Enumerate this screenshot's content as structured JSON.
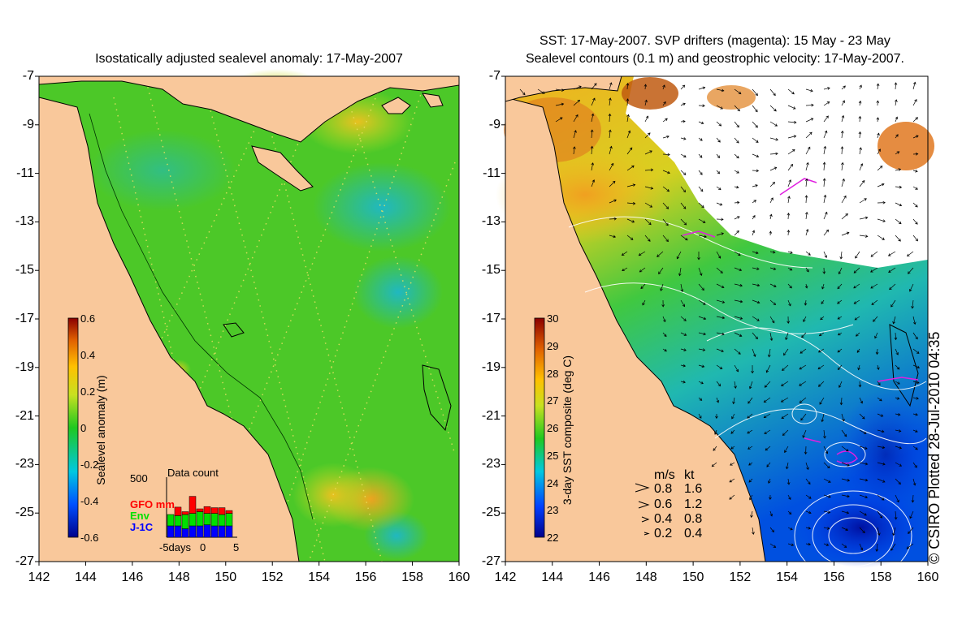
{
  "left_panel": {
    "title": "Isostatically adjusted sealevel anomaly: 17-May-2007",
    "colorbar": {
      "label": "Sealevel anomaly (m)",
      "ticks": [
        "0.6",
        "0.4",
        "0.2",
        "0",
        "-0.2",
        "-0.4",
        "-0.6"
      ],
      "range": [
        -0.6,
        0.6
      ]
    },
    "data_count": {
      "title": "Data count",
      "ymax": "500",
      "legend": [
        {
          "name": "GFO mm",
          "color": "#ff0000"
        },
        {
          "name": "Env",
          "color": "#00e000"
        },
        {
          "name": "J-1C",
          "color": "#0000ff"
        }
      ],
      "x_ticks": [
        "-5days",
        "0",
        "5"
      ],
      "bars": [
        {
          "j1": 0.2,
          "env": 0.2,
          "gfo": 0.0
        },
        {
          "j1": 0.2,
          "env": 0.18,
          "gfo": 0.15
        },
        {
          "j1": 0.15,
          "env": 0.25,
          "gfo": 0.05
        },
        {
          "j1": 0.2,
          "env": 0.22,
          "gfo": 0.3
        },
        {
          "j1": 0.2,
          "env": 0.25,
          "gfo": 0.05
        },
        {
          "j1": 0.22,
          "env": 0.2,
          "gfo": 0.12
        },
        {
          "j1": 0.2,
          "env": 0.22,
          "gfo": 0.1
        },
        {
          "j1": 0.2,
          "env": 0.2,
          "gfo": 0.12
        },
        {
          "j1": 0.2,
          "env": 0.22,
          "gfo": 0.05
        }
      ]
    }
  },
  "right_panel": {
    "title_line1": "SST: 17-May-2007. SVP drifters (magenta): 15 May - 23 May",
    "title_line2": "Sealevel contours (0.1 m) and geostrophic velocity: 17-May-2007.",
    "colorbar": {
      "label": "3-day SST composite (deg C)",
      "ticks": [
        "30",
        "29",
        "28",
        "27",
        "26",
        "25",
        "24",
        "23",
        "22"
      ],
      "range": [
        22,
        30
      ]
    },
    "velocity_legend": {
      "header_ms": "m/s",
      "header_kt": "kt",
      "rows": [
        {
          "ms": "0.8",
          "kt": "1.6"
        },
        {
          "ms": "0.6",
          "kt": "1.2"
        },
        {
          "ms": "0.4",
          "kt": "0.8"
        },
        {
          "ms": "0.2",
          "kt": "0.4"
        }
      ]
    }
  },
  "axes": {
    "lat_ticks": [
      "-7",
      "-9",
      "-11",
      "-13",
      "-15",
      "-17",
      "-19",
      "-21",
      "-23",
      "-25",
      "-27"
    ],
    "lon_ticks": [
      "142",
      "144",
      "146",
      "148",
      "150",
      "152",
      "154",
      "156",
      "158",
      "160"
    ]
  },
  "credit": "© CSIRO Plotted 28-Jul-2010 04:35",
  "colors": {
    "land": "#f9c89b",
    "sea_anomaly_base": "#4cc828",
    "cloud": "#ffffff"
  }
}
